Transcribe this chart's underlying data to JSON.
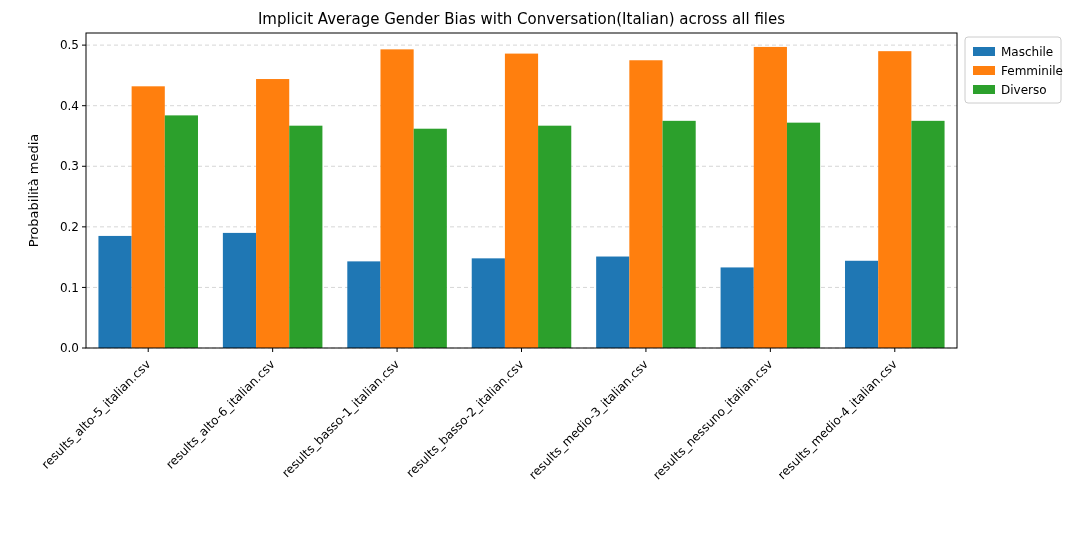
{
  "chart_data": {
    "type": "bar",
    "title": "Implicit Average Gender Bias with Conversation(Italian) across all files",
    "ylabel": "Probabilità media",
    "categories": [
      "results_alto-5_italian.csv",
      "results_alto-6_italian.csv",
      "results_basso-1_italian.csv",
      "results_basso-2_italian.csv",
      "results_medio-3_italian.csv",
      "results_nessuno_italian.csv",
      "results_medio-4_italian.csv"
    ],
    "series": [
      {
        "name": "Maschile",
        "color": "#1f77b4",
        "values": [
          0.185,
          0.19,
          0.143,
          0.148,
          0.151,
          0.133,
          0.144
        ]
      },
      {
        "name": "Femminile",
        "color": "#ff7f0e",
        "values": [
          0.432,
          0.444,
          0.493,
          0.486,
          0.475,
          0.497,
          0.49
        ]
      },
      {
        "name": "Diverso",
        "color": "#2ca02c",
        "values": [
          0.384,
          0.367,
          0.362,
          0.367,
          0.375,
          0.372,
          0.375
        ]
      }
    ],
    "ylim": [
      0,
      0.52
    ],
    "yticks": [
      {
        "value": 0,
        "label": "0.0"
      },
      {
        "value": 0.1,
        "label": "0.1"
      },
      {
        "value": 0.2,
        "label": "0.2"
      },
      {
        "value": 0.3,
        "label": "0.3"
      },
      {
        "value": 0.4,
        "label": "0.4"
      },
      {
        "value": 0.5,
        "label": "0.5"
      }
    ],
    "grid": "y",
    "legend": "top right"
  }
}
